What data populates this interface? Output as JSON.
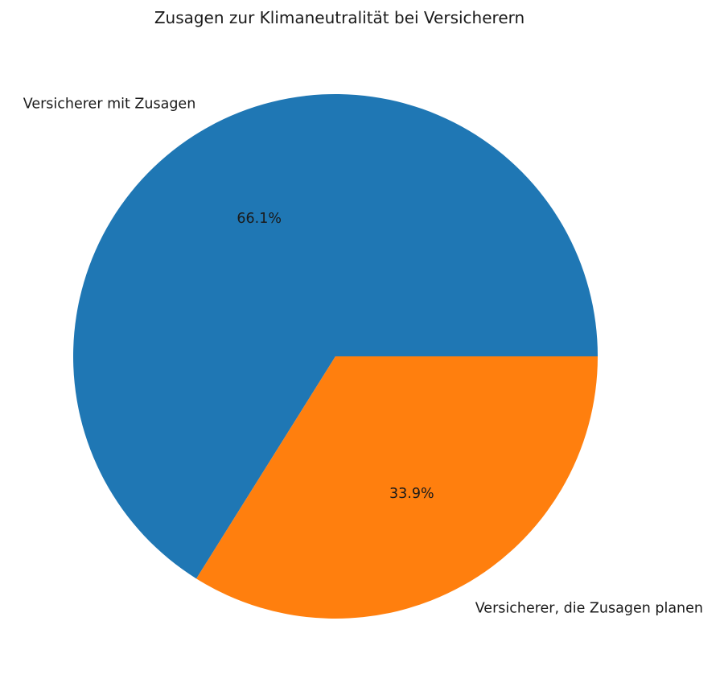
{
  "page": {
    "background": "#ffffff"
  },
  "chart_data": {
    "type": "pie",
    "title": "Zusagen zur Klimaneutralität bei Versicherern",
    "slices": [
      {
        "label": "Versicherer mit Zusagen",
        "value": 66.1,
        "pct_label": "66.1%",
        "color": "#1f77b4"
      },
      {
        "label": "Versicherer, die Zusagen planen",
        "value": 33.9,
        "pct_label": "33.9%",
        "color": "#ff7f0e"
      }
    ],
    "start_angle_deg": 0,
    "direction": "counterclockwise",
    "legend": "none",
    "grid": "off",
    "text_color": "#1a1a1a"
  }
}
